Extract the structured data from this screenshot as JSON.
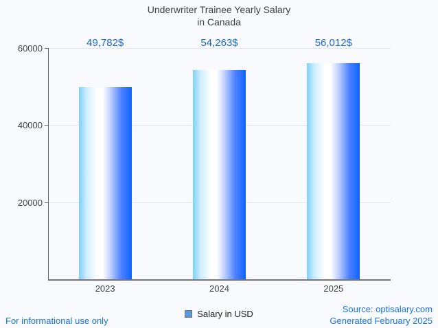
{
  "title": {
    "line1": "Underwriter Trainee Yearly Salary",
    "line2": "in Canada"
  },
  "chart_data": {
    "type": "bar",
    "title": "Underwriter Trainee Yearly Salary in Canada",
    "categories": [
      "2023",
      "2024",
      "2025"
    ],
    "series": [
      {
        "name": "Salary in USD",
        "values": [
          49782,
          54263,
          56012
        ]
      }
    ],
    "value_labels": [
      "49,782$",
      "54,263$",
      "56,012$"
    ],
    "xlabel": "",
    "ylabel": "",
    "ylim": [
      0,
      60000
    ],
    "yticks": [
      20000,
      40000,
      60000
    ],
    "ytick_labels": [
      "20000",
      "40000",
      "60000"
    ],
    "grid": true,
    "legend_position": "bottom"
  },
  "legend": {
    "label": "Salary in USD"
  },
  "footer": {
    "left": "For informational use only",
    "source": "Source: optisalary.com",
    "generated": "Generated February 2025"
  },
  "colors": {
    "background": "#f9fafd",
    "title": "#3c4043",
    "axis_label": "#424242",
    "value_label": "#1a66d2",
    "footer_link": "#1a73e8",
    "grid": "#e3e6eb",
    "axis_line": "#616161",
    "baseline": "#757575",
    "legend_swatch": "#5b96e0",
    "bar_gradient": [
      "#7dd0fb 0%",
      "#cdedfe 14%",
      "#ffffff 34%",
      "#ffffff 45%",
      "#becfff 60%",
      "#4d82ff 80%",
      "#0f63fe 100%"
    ]
  }
}
